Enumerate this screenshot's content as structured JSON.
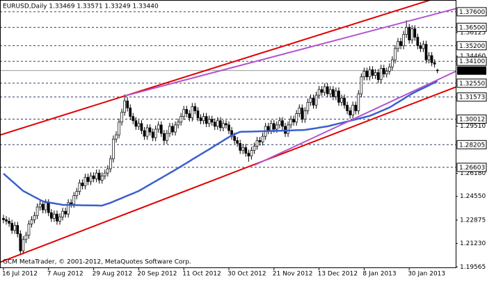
{
  "chart_data": {
    "type": "candlestick",
    "title": "EURUSD,Daily  1.33469 1.33571 1.33249 1.33440",
    "watermark": "GCM MetaTrader, © 2001-2012, MetaQuotes Software Corp.",
    "candle_color": "#000000",
    "bull_fill": "#ffffff",
    "bear_fill": "#000000",
    "categories": [
      "16 Jul 2012",
      null,
      null,
      null,
      null,
      null,
      null,
      null,
      null,
      null,
      null,
      null,
      null,
      null,
      null,
      null,
      "7 Aug 2012",
      null,
      null,
      null,
      null,
      null,
      null,
      null,
      null,
      null,
      null,
      null,
      null,
      null,
      null,
      null,
      "29 Aug 2012",
      null,
      null,
      null,
      null,
      null,
      null,
      null,
      null,
      null,
      null,
      null,
      null,
      null,
      null,
      null,
      "20 Sep 2012",
      null,
      null,
      null,
      null,
      null,
      null,
      null,
      null,
      null,
      null,
      null,
      null,
      null,
      null,
      null,
      "11 Oct 2012",
      null,
      null,
      null,
      null,
      null,
      null,
      null,
      null,
      null,
      null,
      null,
      null,
      null,
      null,
      null,
      "30 Oct 2012",
      null,
      null,
      null,
      null,
      null,
      null,
      null,
      null,
      null,
      null,
      null,
      null,
      null,
      null,
      null,
      "21 Nov 2012",
      null,
      null,
      null,
      null,
      null,
      null,
      null,
      null,
      null,
      null,
      null,
      null,
      null,
      null,
      null,
      "13 Dec 2012",
      null,
      null,
      null,
      null,
      null,
      null,
      null,
      null,
      null,
      null,
      null,
      null,
      null,
      null,
      null,
      "8 Jan 2013",
      null,
      null,
      null,
      null,
      null,
      null,
      null,
      null,
      null,
      null,
      null,
      null,
      null,
      null,
      null,
      "30 Jan 2013",
      null,
      null,
      null,
      null,
      null,
      null,
      null,
      null,
      null,
      null
    ],
    "open": [
      1.23,
      1.229,
      1.228,
      1.2265,
      1.2215,
      1.225,
      1.219,
      1.207,
      1.215,
      1.218,
      1.226,
      1.229,
      1.232,
      1.238,
      1.24,
      1.236,
      1.241,
      1.234,
      1.23,
      1.233,
      1.228,
      1.231,
      1.235,
      1.233,
      1.241,
      1.24,
      1.246,
      1.249,
      1.255,
      1.253,
      1.259,
      1.256,
      1.26,
      1.258,
      1.262,
      1.257,
      1.26,
      1.262,
      1.265,
      1.272,
      1.286,
      1.289,
      1.298,
      1.305,
      1.313,
      1.308,
      1.302,
      1.299,
      1.295,
      1.297,
      1.292,
      1.288,
      1.294,
      1.291,
      1.287,
      1.293,
      1.296,
      1.29,
      1.285,
      1.29,
      1.295,
      1.291,
      1.296,
      1.298,
      1.302,
      1.307,
      1.304,
      1.301,
      1.309,
      1.306,
      1.301,
      1.299,
      1.302,
      1.297,
      1.3,
      1.298,
      1.295,
      1.299,
      1.294,
      1.297,
      1.296,
      1.292,
      1.288,
      1.285,
      1.283,
      1.278,
      1.28,
      1.276,
      1.274,
      1.278,
      1.281,
      1.285,
      1.284,
      1.288,
      1.295,
      1.292,
      1.297,
      1.293,
      1.296,
      1.299,
      1.295,
      1.29,
      1.296,
      1.3,
      1.298,
      1.304,
      1.308,
      1.3,
      1.306,
      1.312,
      1.315,
      1.31,
      1.317,
      1.321,
      1.319,
      1.323,
      1.318,
      1.321,
      1.316,
      1.32,
      1.312,
      1.315,
      1.31,
      1.306,
      1.303,
      1.31,
      1.306,
      1.318,
      1.33,
      1.334,
      1.33,
      1.335,
      1.331,
      1.333,
      1.328,
      1.336,
      1.332,
      1.334,
      1.337,
      1.342,
      1.35,
      1.355,
      1.352,
      1.36,
      1.365,
      1.356,
      1.364,
      1.358,
      1.352,
      1.35,
      1.353,
      1.342,
      1.345,
      1.34,
      1.33469
    ],
    "high": [
      1.2325,
      1.2315,
      1.2305,
      1.229,
      1.2275,
      1.2275,
      1.2215,
      1.2175,
      1.2205,
      1.2285,
      1.2315,
      1.2345,
      1.2405,
      1.2425,
      1.2425,
      1.2435,
      1.2435,
      1.2365,
      1.2355,
      1.2355,
      1.2335,
      1.2375,
      1.2375,
      1.2435,
      1.2435,
      1.2485,
      1.2515,
      1.2575,
      1.2575,
      1.2615,
      1.2615,
      1.2625,
      1.2625,
      1.2645,
      1.2645,
      1.2625,
      1.2645,
      1.2675,
      1.2745,
      1.2885,
      1.2915,
      1.3005,
      1.3075,
      1.3175,
      1.3155,
      1.3105,
      1.3045,
      1.3015,
      1.2995,
      1.2995,
      1.2945,
      1.2965,
      1.2965,
      1.2935,
      1.2955,
      1.2985,
      1.2985,
      1.2925,
      1.2925,
      1.2975,
      1.2975,
      1.2985,
      1.3005,
      1.3045,
      1.3095,
      1.3095,
      1.3065,
      1.3115,
      1.3115,
      1.3085,
      1.3035,
      1.3045,
      1.3045,
      1.3025,
      1.3025,
      1.3005,
      1.3015,
      1.3015,
      1.2995,
      1.2995,
      1.2985,
      1.2945,
      1.2905,
      1.2875,
      1.2855,
      1.2825,
      1.2825,
      1.2785,
      1.2805,
      1.2835,
      1.2875,
      1.2875,
      1.2905,
      1.2975,
      1.2975,
      1.2995,
      1.2995,
      1.2985,
      1.3015,
      1.3015,
      1.2975,
      1.2985,
      1.3025,
      1.3025,
      1.3065,
      1.3105,
      1.3105,
      1.3085,
      1.3145,
      1.3175,
      1.3175,
      1.3195,
      1.3235,
      1.3235,
      1.3255,
      1.3255,
      1.3235,
      1.3235,
      1.3225,
      1.3225,
      1.3175,
      1.3175,
      1.3125,
      1.3085,
      1.3125,
      1.3125,
      1.3205,
      1.3325,
      1.3365,
      1.3365,
      1.3375,
      1.3375,
      1.3355,
      1.3355,
      1.3385,
      1.3385,
      1.3365,
      1.3395,
      1.3445,
      1.3525,
      1.3575,
      1.3575,
      1.3625,
      1.37,
      1.3675,
      1.3665,
      1.3665,
      1.3605,
      1.3545,
      1.3555,
      1.3555,
      1.3475,
      1.3475,
      1.3425,
      1.33571
    ],
    "low": [
      1.2265,
      1.2255,
      1.224,
      1.219,
      1.219,
      1.2165,
      1.204,
      1.2045,
      1.2125,
      1.2155,
      1.2235,
      1.2265,
      1.2295,
      1.2355,
      1.2335,
      1.2335,
      1.2315,
      1.2275,
      1.2275,
      1.2255,
      1.2255,
      1.2285,
      1.2305,
      1.2305,
      1.2375,
      1.2375,
      1.2435,
      1.2465,
      1.2505,
      1.2505,
      1.2535,
      1.2535,
      1.2555,
      1.2555,
      1.2545,
      1.2545,
      1.2575,
      1.2595,
      1.2625,
      1.2695,
      1.2835,
      1.2865,
      1.2955,
      1.3025,
      1.3055,
      1.2995,
      1.2965,
      1.2925,
      1.2925,
      1.2895,
      1.2855,
      1.2855,
      1.2885,
      1.2845,
      1.2845,
      1.2905,
      1.2875,
      1.2825,
      1.2825,
      1.2875,
      1.2885,
      1.2885,
      1.2935,
      1.2955,
      1.2995,
      1.3015,
      1.2985,
      1.2985,
      1.3035,
      1.2985,
      1.2965,
      1.2965,
      1.2945,
      1.2945,
      1.2955,
      1.2925,
      1.2925,
      1.2915,
      1.2915,
      1.2935,
      1.2895,
      1.2855,
      1.2825,
      1.2805,
      1.2755,
      1.2755,
      1.2735,
      1.27,
      1.2715,
      1.2755,
      1.2785,
      1.2815,
      1.2815,
      1.2855,
      1.2895,
      1.2895,
      1.2905,
      1.2905,
      1.2935,
      1.2925,
      1.2875,
      1.2875,
      1.2935,
      1.2955,
      1.2955,
      1.3015,
      1.2975,
      1.2975,
      1.3035,
      1.3095,
      1.3075,
      1.3075,
      1.3145,
      1.3165,
      1.3165,
      1.3155,
      1.3155,
      1.3135,
      1.3135,
      1.3095,
      1.3095,
      1.3075,
      1.3035,
      1.3005,
      1.3005,
      1.3035,
      1.3035,
      1.3155,
      1.3275,
      1.3275,
      1.3275,
      1.3285,
      1.3285,
      1.3255,
      1.3255,
      1.3295,
      1.3295,
      1.3315,
      1.3345,
      1.3395,
      1.3475,
      1.3495,
      1.3495,
      1.3575,
      1.3535,
      1.3535,
      1.3555,
      1.3495,
      1.3475,
      1.3475,
      1.3395,
      1.3395,
      1.3375,
      1.3365,
      1.33249
    ],
    "close": [
      1.229,
      1.228,
      1.2265,
      1.2215,
      1.225,
      1.219,
      1.207,
      1.215,
      1.218,
      1.226,
      1.229,
      1.232,
      1.238,
      1.24,
      1.236,
      1.241,
      1.234,
      1.23,
      1.233,
      1.228,
      1.231,
      1.235,
      1.233,
      1.241,
      1.24,
      1.246,
      1.249,
      1.255,
      1.253,
      1.259,
      1.256,
      1.26,
      1.258,
      1.262,
      1.257,
      1.26,
      1.262,
      1.265,
      1.272,
      1.286,
      1.289,
      1.298,
      1.305,
      1.313,
      1.308,
      1.302,
      1.299,
      1.295,
      1.297,
      1.292,
      1.288,
      1.294,
      1.291,
      1.287,
      1.293,
      1.296,
      1.29,
      1.285,
      1.29,
      1.295,
      1.291,
      1.296,
      1.298,
      1.302,
      1.307,
      1.304,
      1.301,
      1.309,
      1.306,
      1.301,
      1.299,
      1.302,
      1.297,
      1.3,
      1.298,
      1.295,
      1.299,
      1.294,
      1.297,
      1.296,
      1.292,
      1.288,
      1.285,
      1.283,
      1.278,
      1.28,
      1.276,
      1.274,
      1.278,
      1.281,
      1.285,
      1.284,
      1.288,
      1.295,
      1.292,
      1.297,
      1.293,
      1.296,
      1.299,
      1.295,
      1.29,
      1.296,
      1.3,
      1.298,
      1.304,
      1.308,
      1.3,
      1.306,
      1.312,
      1.315,
      1.31,
      1.317,
      1.321,
      1.319,
      1.323,
      1.318,
      1.321,
      1.316,
      1.32,
      1.312,
      1.315,
      1.31,
      1.306,
      1.303,
      1.31,
      1.306,
      1.318,
      1.33,
      1.334,
      1.33,
      1.335,
      1.331,
      1.333,
      1.328,
      1.336,
      1.332,
      1.334,
      1.337,
      1.342,
      1.35,
      1.355,
      1.352,
      1.36,
      1.365,
      1.356,
      1.364,
      1.358,
      1.352,
      1.35,
      1.353,
      1.342,
      1.345,
      1.34,
      1.339,
      1.3344
    ],
    "moving_average": {
      "color": "#3a5fcd",
      "values": [
        1.2616,
        1.2598,
        1.2581,
        1.2563,
        1.2546,
        1.2528,
        1.2511,
        1.2493,
        1.2483,
        1.2472,
        1.2462,
        1.2451,
        1.2441,
        1.243,
        1.242,
        1.2416,
        1.2413,
        1.2409,
        1.2406,
        1.2402,
        1.2399,
        1.2395,
        1.2395,
        1.2394,
        1.2394,
        1.2393,
        1.2393,
        1.2393,
        1.2392,
        1.2392,
        1.2392,
        1.2391,
        1.2391,
        1.2391,
        1.239,
        1.239,
        1.2397,
        1.2403,
        1.241,
        1.2418,
        1.2427,
        1.2435,
        1.2443,
        1.2452,
        1.246,
        1.2468,
        1.2476,
        1.2485,
        1.2493,
        1.2505,
        1.2516,
        1.2528,
        1.2539,
        1.2551,
        1.2562,
        1.2574,
        1.2585,
        1.2597,
        1.2608,
        1.262,
        1.2631,
        1.2643,
        1.2655,
        1.2667,
        1.2679,
        1.2691,
        1.2703,
        1.2716,
        1.2728,
        1.274,
        1.2752,
        1.2764,
        1.2776,
        1.2788,
        1.28,
        1.2813,
        1.2825,
        1.2837,
        1.2849,
        1.2862,
        1.2874,
        1.2886,
        1.2894,
        1.2903,
        1.2911,
        1.2912,
        1.2912,
        1.2913,
        1.2913,
        1.2914,
        1.2914,
        1.2915,
        1.2915,
        1.2916,
        1.2917,
        1.2917,
        1.2918,
        1.2918,
        1.2919,
        1.2919,
        1.292,
        1.292,
        1.2921,
        1.2922,
        1.2923,
        1.2923,
        1.2924,
        1.2925,
        1.2928,
        1.2931,
        1.2934,
        1.2937,
        1.2941,
        1.2944,
        1.2947,
        1.295,
        1.2955,
        1.296,
        1.2965,
        1.297,
        1.2974,
        1.2979,
        1.2984,
        1.2989,
        1.2994,
        1.2999,
        1.3004,
        1.3009,
        1.3014,
        1.3019,
        1.3024,
        1.3032,
        1.3041,
        1.3049,
        1.3058,
        1.3066,
        1.3075,
        1.3083,
        1.3095,
        1.3108,
        1.312,
        1.3132,
        1.3144,
        1.3157,
        1.3169,
        1.3181,
        1.3191,
        1.3201,
        1.3211,
        1.322,
        1.323,
        1.324,
        1.325,
        1.3259,
        1.3269
      ]
    },
    "trendlines": [
      {
        "color": "#e00000",
        "extend": "both",
        "points": [
          [
            43,
            1.3165
          ],
          [
            143,
            1.379
          ]
        ]
      },
      {
        "color": "#e00000",
        "extend": "both",
        "points": [
          [
            6,
            1.2045
          ],
          [
            87,
            1.2665
          ]
        ]
      },
      {
        "color": "#b452cd",
        "extend": "right",
        "points": [
          [
            43,
            1.3165
          ],
          [
            143,
            1.369
          ]
        ]
      },
      {
        "color": "#b452cd",
        "extend": "right",
        "points": [
          [
            89,
            1.2675
          ],
          [
            143,
            1.3176
          ]
        ]
      }
    ],
    "level_color": "#2b3a67",
    "levels": [
      {
        "value": 1.376,
        "label": "1.37600"
      },
      {
        "value": 1.365,
        "label": "1.36500"
      },
      {
        "value": 1.352,
        "label": "1.35200"
      },
      {
        "value": 1.341,
        "label": "1.34100"
      },
      {
        "value": 1.3255,
        "label": "1.32550"
      },
      1.31573,
      1.30012,
      1.28205,
      1.26603
    ],
    "current_price": {
      "value": 1.3344,
      "label": "1.33440"
    },
    "ylim": [
      1.1953,
      1.3843
    ],
    "yticks": [
      1.36125,
      {
        "value": 1.3446,
        "label": "1.34460"
      },
      {
        "value": 1.2951,
        "label": "1.29510"
      },
      {
        "value": 1.2618,
        "label": "1.26180"
      },
      {
        "value": 1.2455,
        "label": "1.24550"
      },
      1.22875,
      {
        "value": 1.2123,
        "label": "1.21230"
      },
      1.19565
    ]
  }
}
